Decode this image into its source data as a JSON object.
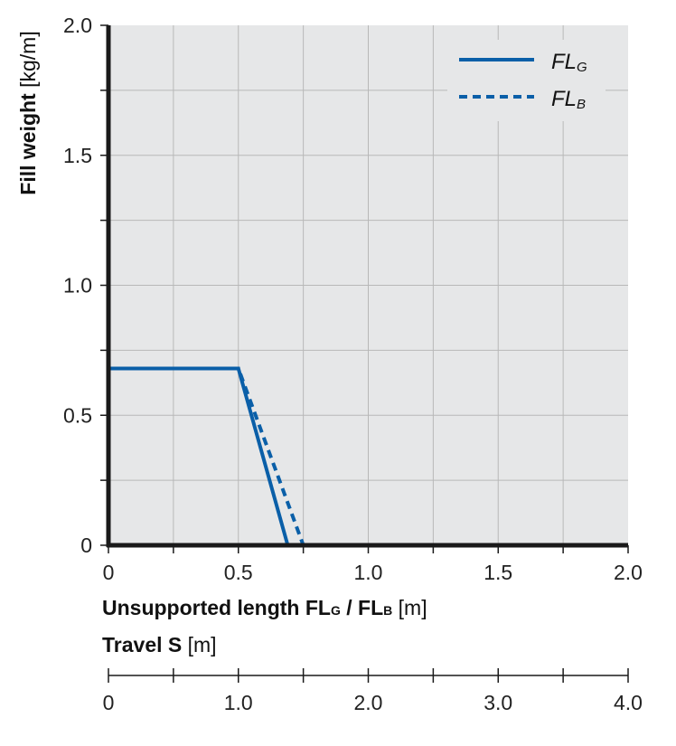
{
  "chart_data": {
    "type": "line",
    "xlabel": {
      "bold": "Unsupported length FL",
      "sub_g": "G",
      "sep": " / FL",
      "sub_b": "B",
      "unit": " [m]"
    },
    "ylabel": {
      "bold": "Fill weight",
      "unit": " [kg/m]"
    },
    "x_ticks": [
      "0",
      "0.5",
      "1.0",
      "1.5",
      "2.0"
    ],
    "y_ticks": [
      "0",
      "0.5",
      "1.0",
      "1.5",
      "2.0"
    ],
    "xlim": [
      0,
      2
    ],
    "ylim": [
      0,
      2
    ],
    "grid": true,
    "legend_position": "top-right",
    "series": [
      {
        "name": "FL",
        "name_sub": "G",
        "style": "solid",
        "color": "#0a5fa8",
        "x": [
          0,
          0.5,
          0.69
        ],
        "y": [
          0.68,
          0.68,
          0
        ]
      },
      {
        "name": "FL",
        "name_sub": "B",
        "style": "dashed",
        "color": "#0a5fa8",
        "x": [
          0,
          0.5,
          0.75
        ],
        "y": [
          0.68,
          0.68,
          0
        ]
      }
    ],
    "secondary_axis": {
      "label_bold": "Travel S",
      "label_unit": " [m]",
      "ticks": [
        "0",
        "1.0",
        "2.0",
        "3.0",
        "4.0"
      ],
      "range": [
        0,
        4
      ]
    },
    "colors": {
      "plot_background": "#e6e7e8",
      "grid": "#b8b8b8",
      "axis": "#1a1a1a",
      "line": "#0a5fa8"
    }
  }
}
